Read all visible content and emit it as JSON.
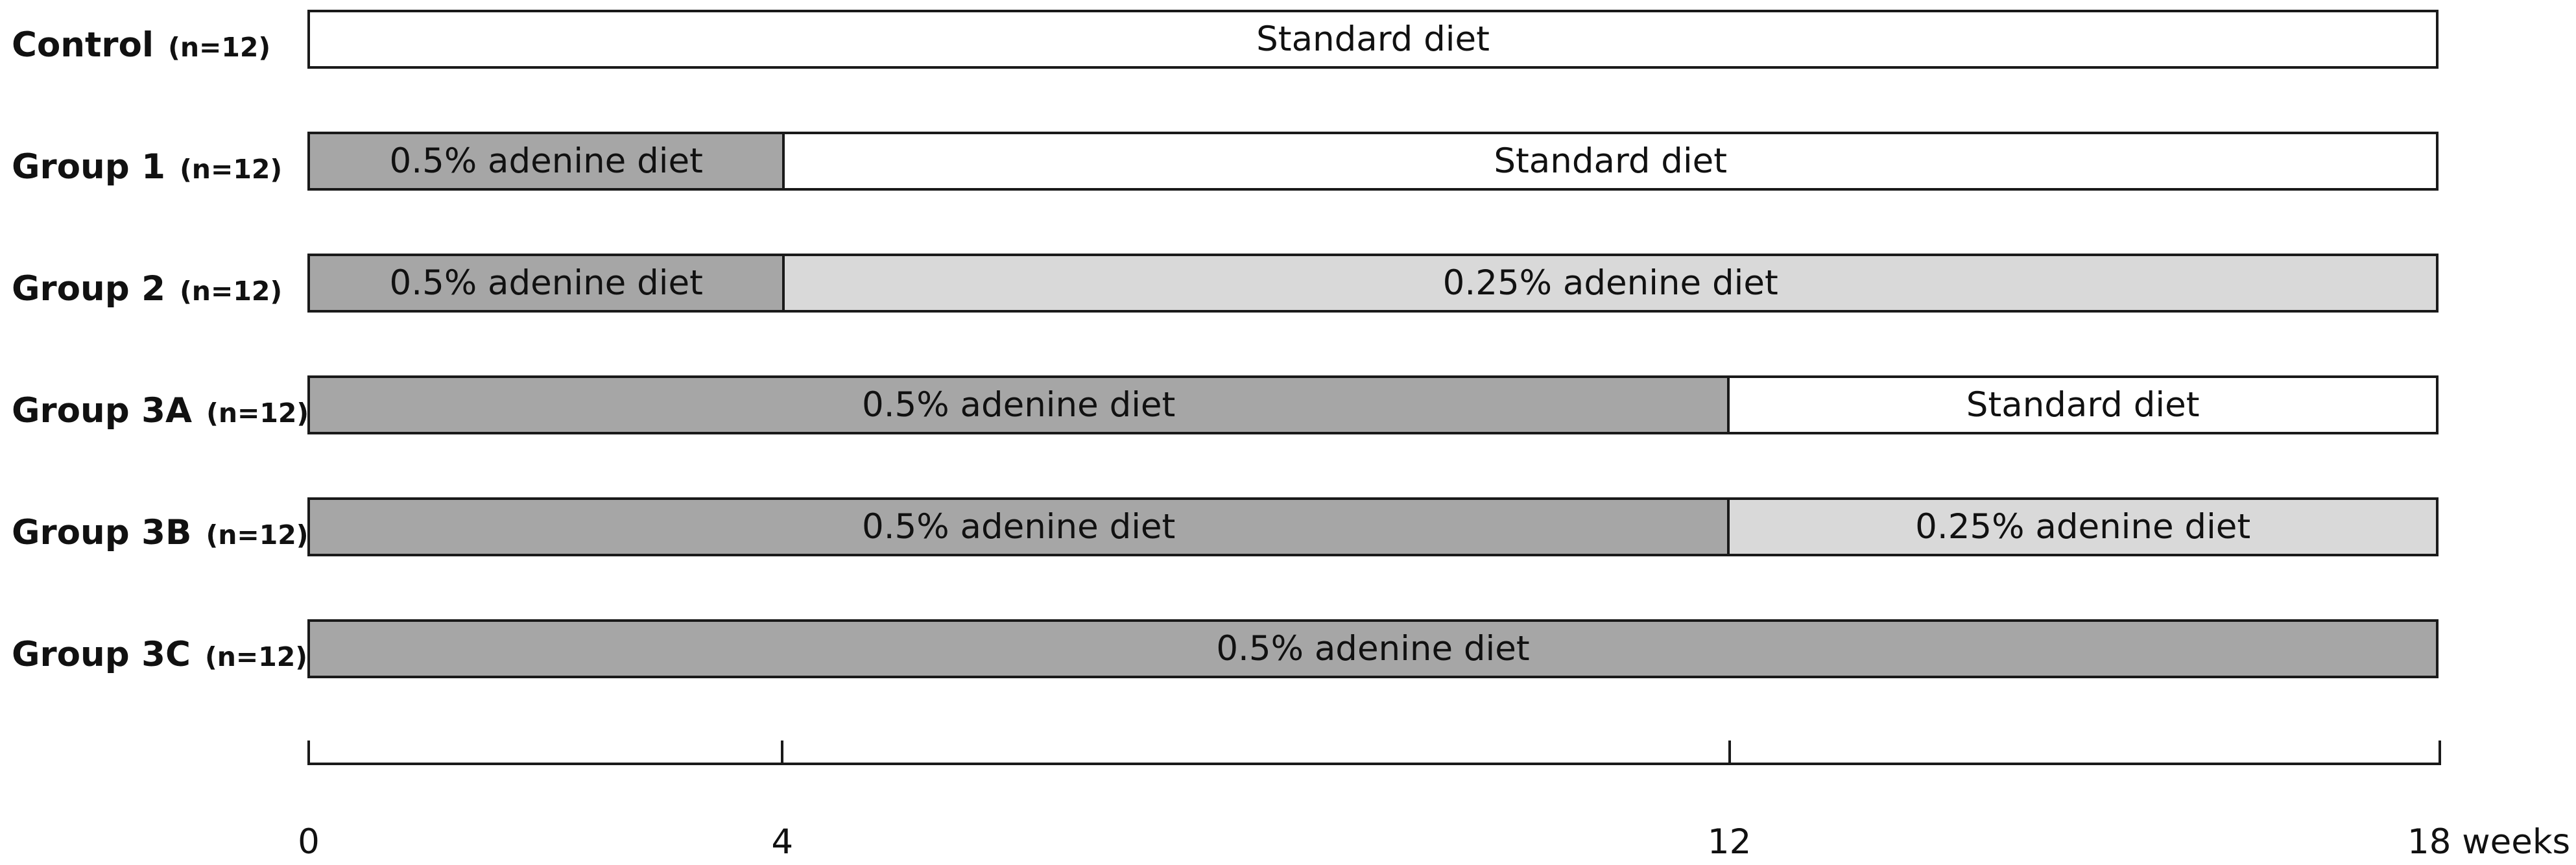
{
  "total_weeks": 18,
  "colors": {
    "standard": "#ffffff",
    "adenine_05": "#a6a6a6",
    "adenine_025": "#d9d9d9",
    "border": "#1a1a1a"
  },
  "groups": [
    {
      "name": "Control",
      "n": "(n=12)",
      "segments": [
        {
          "label": "Standard diet",
          "diet": "standard",
          "from": 0,
          "to": 18
        }
      ]
    },
    {
      "name": "Group 1",
      "n": "(n=12)",
      "segments": [
        {
          "label": "0.5% adenine diet",
          "diet": "adenine_05",
          "from": 0,
          "to": 4
        },
        {
          "label": "Standard diet",
          "diet": "standard",
          "from": 4,
          "to": 18
        }
      ]
    },
    {
      "name": "Group 2",
      "n": "(n=12)",
      "segments": [
        {
          "label": "0.5% adenine diet",
          "diet": "adenine_05",
          "from": 0,
          "to": 4
        },
        {
          "label": "0.25% adenine diet",
          "diet": "adenine_025",
          "from": 4,
          "to": 18
        }
      ]
    },
    {
      "name": "Group 3A",
      "n": "(n=12)",
      "segments": [
        {
          "label": "0.5% adenine diet",
          "diet": "adenine_05",
          "from": 0,
          "to": 12
        },
        {
          "label": "Standard diet",
          "diet": "standard",
          "from": 12,
          "to": 18
        }
      ]
    },
    {
      "name": "Group 3B",
      "n": "(n=12)",
      "segments": [
        {
          "label": "0.5% adenine diet",
          "diet": "adenine_05",
          "from": 0,
          "to": 12
        },
        {
          "label": "0.25% adenine diet",
          "diet": "adenine_025",
          "from": 12,
          "to": 18
        }
      ]
    },
    {
      "name": "Group 3C",
      "n": "(n=12)",
      "segments": [
        {
          "label": "0.5% adenine diet",
          "diet": "adenine_05",
          "from": 0,
          "to": 18
        }
      ]
    }
  ],
  "timeline": {
    "ticks": [
      {
        "week": 0,
        "label": "0"
      },
      {
        "week": 4,
        "label": "4"
      },
      {
        "week": 12,
        "label": "12"
      },
      {
        "week": 18,
        "label": "18 weeks"
      }
    ]
  }
}
